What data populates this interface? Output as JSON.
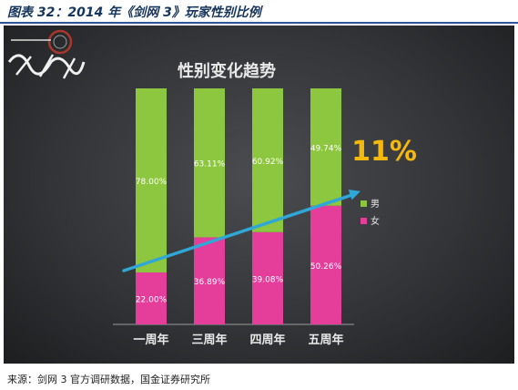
{
  "figure_title": "图表 32：2014 年《剑网 3》玩家性别比例",
  "source": "来源：剑网 3 官方调研数据，国金证券研究所",
  "colors": {
    "male": "#8dc63f",
    "female": "#e43d9a",
    "trend": "#2fa8d8",
    "highlight": "#f5b80c",
    "text": "#e8e8e8"
  },
  "chart_data": {
    "type": "bar",
    "stacked": true,
    "title": "性别变化趋势",
    "categories": [
      "一周年",
      "三周年",
      "四周年",
      "五周年"
    ],
    "ylim": [
      0,
      100
    ],
    "legend_position": "right",
    "series": [
      {
        "name": "女",
        "values": [
          22.0,
          36.89,
          39.08,
          50.26
        ],
        "labels": [
          "22.00%",
          "36.89%",
          "39.08%",
          "50.26%"
        ]
      },
      {
        "name": "男",
        "values": [
          78.0,
          63.11,
          60.92,
          49.74
        ],
        "labels": [
          "78.00%",
          "63.11%",
          "60.92%",
          "49.74%"
        ]
      }
    ],
    "annotation": "11%"
  }
}
